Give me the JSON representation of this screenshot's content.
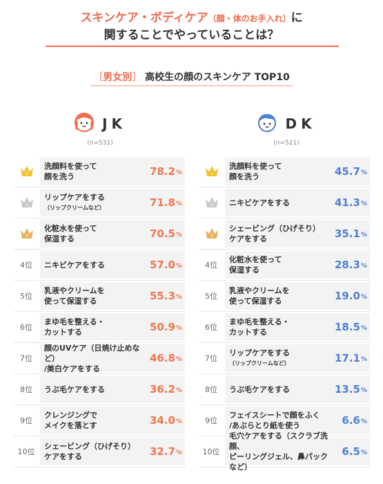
{
  "title": {
    "line1_a": "スキンケア・ボディケア",
    "line1_b": "（顔・体のお手入れ）",
    "line1_c": "に",
    "line2": "関することでやっていることは？"
  },
  "subtitle": {
    "bracket_open": "［",
    "tag": "男女別",
    "bracket_close": "］",
    "text": "高校生の顔のスキンケア TOP10"
  },
  "colors": {
    "accent": "#ee6b4d",
    "jk_value": "#ef7650",
    "dk_value": "#4f7fd4",
    "gold": "#f2c230",
    "silver": "#c8c8c8",
    "bronze": "#e9b25c"
  },
  "icons": {
    "jk": "girl-face-icon",
    "dk": "boy-face-icon",
    "crown": "crown-icon"
  },
  "chart_data": [
    {
      "type": "table",
      "group": "JK",
      "sample": "(n=531)",
      "unit": "%",
      "rows": [
        {
          "rank": "1",
          "item": [
            "洗顔料を使って",
            "顔を洗う"
          ],
          "note": "",
          "value": 78.2
        },
        {
          "rank": "2",
          "item": [
            "リップケアをする"
          ],
          "note": "（リップクリームなど）",
          "value": 71.8
        },
        {
          "rank": "3",
          "item": [
            "化粧水を使って",
            "保湿する"
          ],
          "note": "",
          "value": 70.5
        },
        {
          "rank": "4位",
          "item": [
            "ニキビケアをする"
          ],
          "note": "",
          "value": 57.0
        },
        {
          "rank": "5位",
          "item": [
            "乳液やクリームを",
            "使って保湿する"
          ],
          "note": "",
          "value": 55.3
        },
        {
          "rank": "6位",
          "item": [
            "まゆ毛を整える・",
            "カットする"
          ],
          "note": "",
          "value": 50.9
        },
        {
          "rank": "7位",
          "item": [
            "顔のUVケア（日焼け止めなど）",
            "/美白ケアをする"
          ],
          "note": "",
          "value": 46.8
        },
        {
          "rank": "8位",
          "item": [
            "うぶ毛ケアをする"
          ],
          "note": "",
          "value": 36.2
        },
        {
          "rank": "9位",
          "item": [
            "クレンジングで",
            "メイクを落とす"
          ],
          "note": "",
          "value": 34.0
        },
        {
          "rank": "10位",
          "item": [
            "シェービング（ひげそり）",
            "ケアをする"
          ],
          "note": "",
          "value": 32.7
        }
      ]
    },
    {
      "type": "table",
      "group": "DK",
      "sample": "(n=521)",
      "unit": "%",
      "rows": [
        {
          "rank": "1",
          "item": [
            "洗顔料を使って",
            "顔を洗う"
          ],
          "note": "",
          "value": 45.7
        },
        {
          "rank": "2",
          "item": [
            "ニキビケアをする"
          ],
          "note": "",
          "value": 41.3
        },
        {
          "rank": "3",
          "item": [
            "シェービング（ひげそり）",
            "ケアをする"
          ],
          "note": "",
          "value": 35.1
        },
        {
          "rank": "4位",
          "item": [
            "化粧水を使って",
            "保湿する"
          ],
          "note": "",
          "value": 28.3
        },
        {
          "rank": "5位",
          "item": [
            "乳液やクリームを",
            "使って保湿する"
          ],
          "note": "",
          "value": 19.0
        },
        {
          "rank": "6位",
          "item": [
            "まゆ毛を整える・",
            "カットする"
          ],
          "note": "",
          "value": 18.5
        },
        {
          "rank": "7位",
          "item": [
            "リップケアをする"
          ],
          "note": "（リップクリームなど）",
          "value": 17.1
        },
        {
          "rank": "8位",
          "item": [
            "うぶ毛ケアをする"
          ],
          "note": "",
          "value": 13.5
        },
        {
          "rank": "9位",
          "item": [
            "フェイスシートで顔をふく",
            "/あぶらとり紙を使う"
          ],
          "note": "",
          "value": 6.6
        },
        {
          "rank": "10位",
          "item": [
            "毛穴ケアをする（スクラブ洗顔、",
            "ピーリングジェル、鼻パックなど）"
          ],
          "note": "",
          "value": 6.5
        }
      ]
    }
  ]
}
